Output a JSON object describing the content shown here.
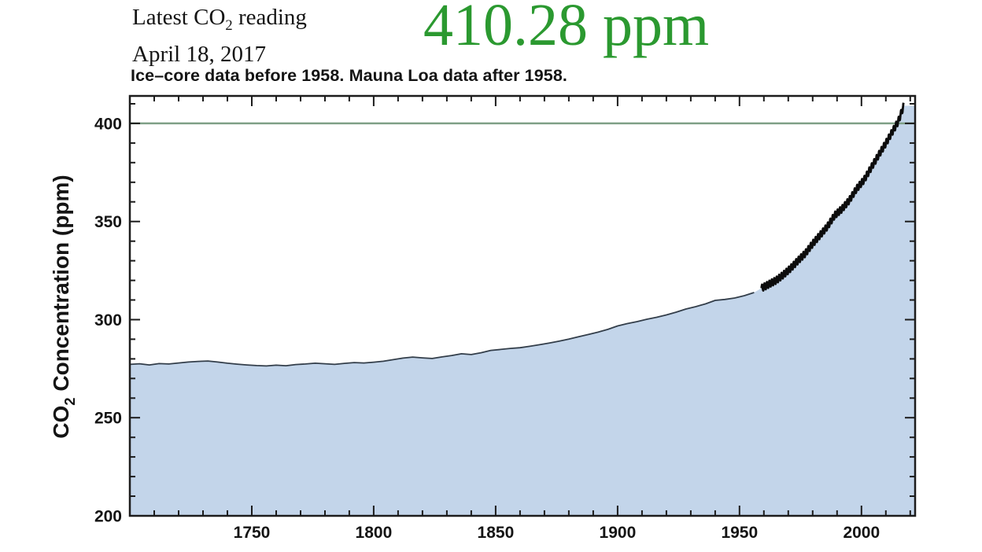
{
  "header": {
    "latest_label_prefix": "Latest CO",
    "latest_label_sub": "2",
    "latest_label_suffix": " reading",
    "date": "April 18, 2017",
    "reading_value": "410.28 ppm",
    "reading_color": "#2b9930"
  },
  "chart_data": {
    "type": "area",
    "title": "Ice–core data before 1958. Mauna Loa data after 1958.",
    "ylabel_prefix": "CO",
    "ylabel_sub": "2",
    "ylabel_suffix": " Concentration (ppm)",
    "units": "ppm",
    "grid": false,
    "legend": "none",
    "x_axis": {
      "min": 1700,
      "max": 2022,
      "major_ticks": [
        1750,
        1800,
        1850,
        1900,
        1950,
        2000
      ],
      "minor_step": 10
    },
    "y_axis": {
      "min": 200,
      "max": 414,
      "major_ticks": [
        200,
        250,
        300,
        350,
        400
      ],
      "minor_step": 10
    },
    "reference_line": {
      "value": 400,
      "color": "#7fa087"
    },
    "fill_color": "#c3d5ea",
    "frame_color": "#1c1c1c",
    "latest_point": {
      "date": "April 18, 2017",
      "value_ppm": 410.28
    },
    "series": [
      {
        "name": "Ice-core CO2 (before 1958)",
        "style": "thin-line",
        "color": "#333e4a",
        "stroke_width": 1.8,
        "x": [
          1700,
          1704,
          1708,
          1712,
          1716,
          1720,
          1724,
          1728,
          1732,
          1736,
          1740,
          1744,
          1748,
          1752,
          1756,
          1760,
          1764,
          1768,
          1772,
          1776,
          1780,
          1784,
          1788,
          1792,
          1796,
          1800,
          1804,
          1808,
          1812,
          1816,
          1820,
          1824,
          1828,
          1832,
          1836,
          1840,
          1844,
          1848,
          1852,
          1856,
          1860,
          1864,
          1868,
          1872,
          1876,
          1880,
          1884,
          1888,
          1892,
          1896,
          1900,
          1904,
          1908,
          1912,
          1916,
          1920,
          1924,
          1928,
          1932,
          1936,
          1940,
          1944,
          1948,
          1952,
          1956
        ],
        "values": [
          277.2,
          277.5,
          276.9,
          277.6,
          277.4,
          277.9,
          278.4,
          278.7,
          278.9,
          278.4,
          277.8,
          277.3,
          276.9,
          276.6,
          276.4,
          276.8,
          276.5,
          277.1,
          277.4,
          277.8,
          277.5,
          277.2,
          277.7,
          278.1,
          277.9,
          278.3,
          278.8,
          279.6,
          280.4,
          280.9,
          280.5,
          280.2,
          281.0,
          281.7,
          282.6,
          282.2,
          283.1,
          284.3,
          284.8,
          285.3,
          285.7,
          286.4,
          287.2,
          288.1,
          289.0,
          290.1,
          291.3,
          292.4,
          293.6,
          295.0,
          296.8,
          298.0,
          299.0,
          300.2,
          301.2,
          302.4,
          303.8,
          305.4,
          306.6,
          308.0,
          309.8,
          310.3,
          311.0,
          312.2,
          313.8
        ]
      },
      {
        "name": "Mauna Loa CO2 (after 1958, monthly with seasonal cycle)",
        "style": "thick-band",
        "color": "#0c0c0c",
        "stroke_width": 2.8,
        "seasonal_amplitude_ppm": 1.7,
        "x": [
          1959,
          1962,
          1965,
          1968,
          1971,
          1974,
          1977,
          1980,
          1983,
          1986,
          1989,
          1992,
          1995,
          1998,
          2001,
          2004,
          2007,
          2010,
          2013,
          2015,
          2016,
          2017.3
        ],
        "values": [
          316.0,
          318.0,
          320.0,
          322.9,
          326.2,
          330.1,
          333.8,
          338.7,
          343.0,
          347.4,
          353.1,
          356.4,
          360.8,
          366.7,
          371.1,
          377.5,
          383.8,
          389.9,
          396.5,
          400.8,
          404.2,
          409.0
        ]
      }
    ]
  }
}
